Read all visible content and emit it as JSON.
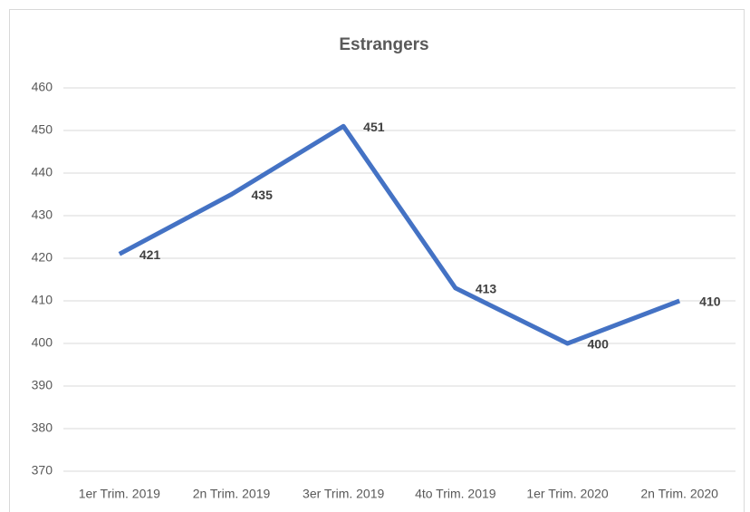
{
  "chart_data": {
    "type": "line",
    "title": "Estrangers",
    "categories": [
      "1er Trim. 2019",
      "2n Trim. 2019",
      "3er Trim. 2019",
      "4to Trim. 2019",
      "1er Trim. 2020",
      "2n Trim. 2020"
    ],
    "values": [
      421,
      435,
      451,
      413,
      400,
      410
    ],
    "color": "#4472c4",
    "ylim": [
      370,
      460
    ],
    "yticks": [
      370,
      380,
      390,
      400,
      410,
      420,
      430,
      440,
      450,
      460
    ],
    "grid": true
  }
}
